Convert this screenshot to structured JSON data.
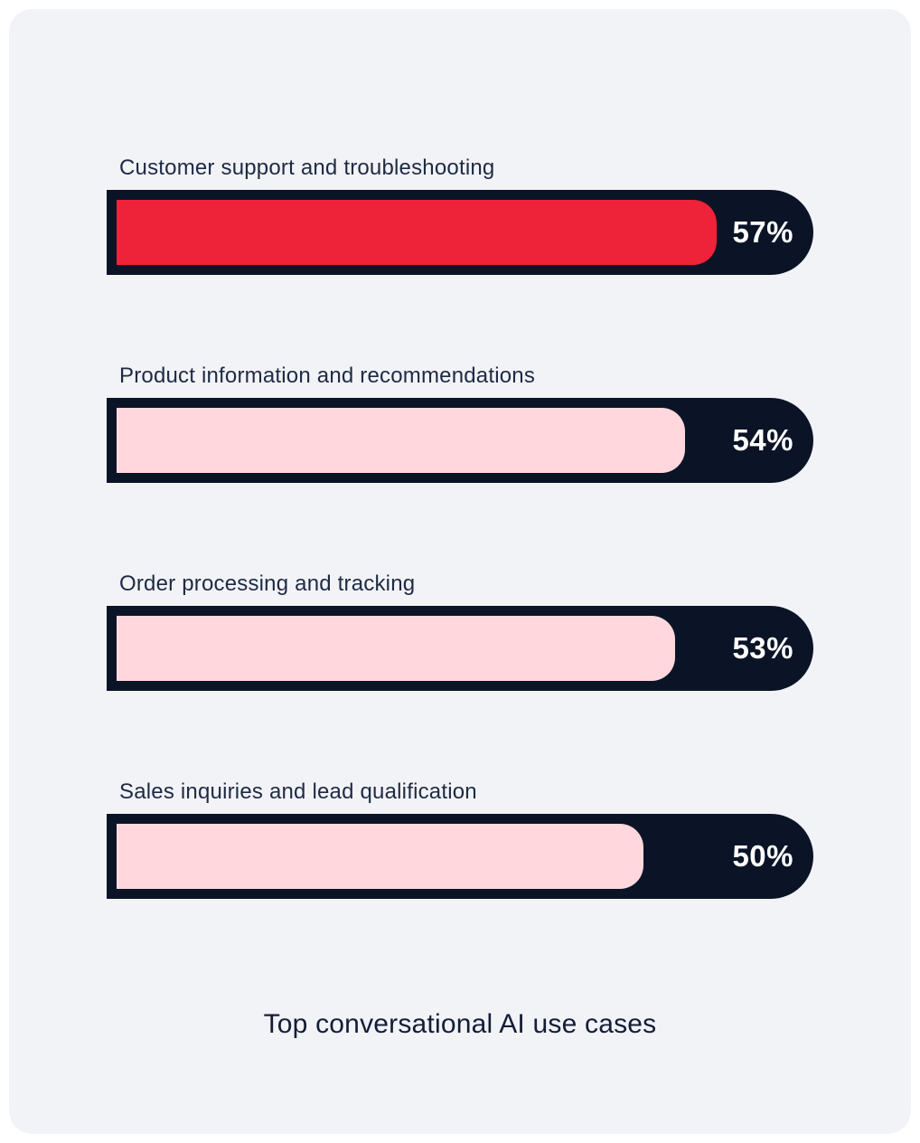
{
  "page": {
    "background": "#FFFFFF",
    "panel_background": "#F2F3F7"
  },
  "colors": {
    "track_navy": "#0A1426",
    "highlight_red": "#EE2238",
    "pink": "#FFD7DD",
    "label_text": "#1E2A43",
    "value_text": "#FFFFFF",
    "title_text": "#141D36"
  },
  "title": "Top conversational AI use cases",
  "chart_data": {
    "type": "bar",
    "orientation": "horizontal",
    "title": "Top conversational AI use cases",
    "categories": [
      "Customer support and troubleshooting",
      "Product information and recommendations",
      "Order processing and tracking",
      "Sales inquiries and lead qualification"
    ],
    "values": [
      57,
      54,
      53,
      50
    ],
    "value_suffix": "%",
    "xlabel": "",
    "ylabel": "",
    "xlim": [
      0,
      65.2
    ],
    "grid": false,
    "legend": false,
    "bars": [
      {
        "label": "Customer support and troubleshooting",
        "value": 57,
        "display_value": "57%",
        "fill_color": "#EE2238"
      },
      {
        "label": "Product information and recommendations",
        "value": 54,
        "display_value": "54%",
        "fill_color": "#FFD7DD"
      },
      {
        "label": "Order processing and tracking",
        "value": 53,
        "display_value": "53%",
        "fill_color": "#FFD7DD"
      },
      {
        "label": "Sales inquiries and lead qualification",
        "value": 50,
        "display_value": "50%",
        "fill_color": "#FFD7DD"
      }
    ]
  }
}
